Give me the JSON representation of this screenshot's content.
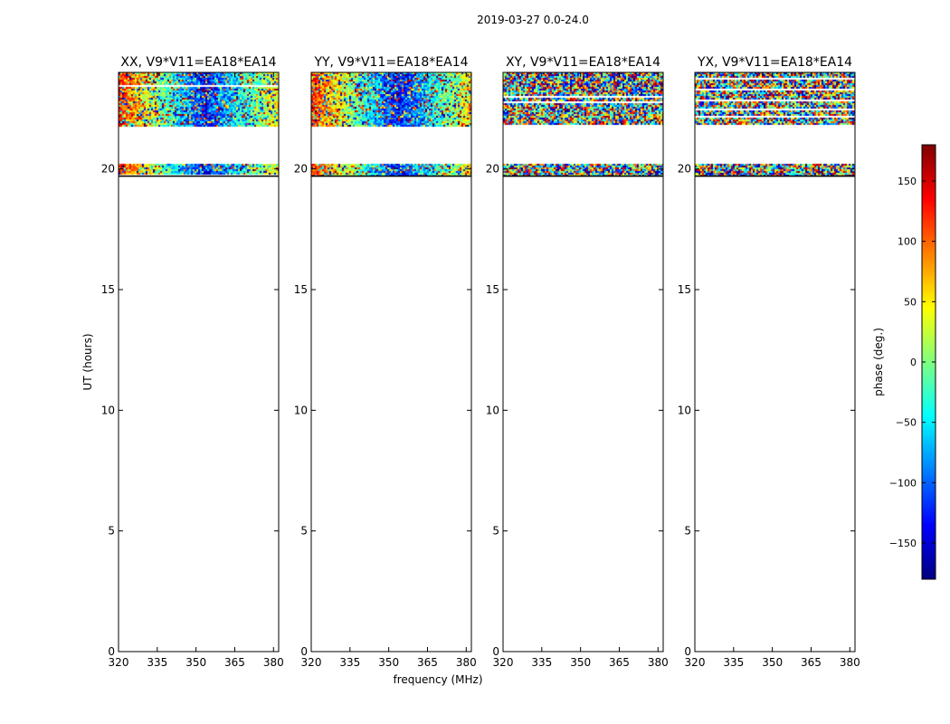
{
  "chart_data": {
    "type": "heatmap",
    "suptitle": "2019-03-27 0.0-24.0",
    "xlabel": "frequency (MHz)",
    "ylabel": "UT (hours)",
    "xlim": [
      320,
      382
    ],
    "ylim": [
      0,
      24
    ],
    "xticks": [
      "320",
      "335",
      "350",
      "365",
      "380"
    ],
    "yticks": [
      "0",
      "5",
      "10",
      "15",
      "20"
    ],
    "panels": [
      {
        "title": "XX, V9*V11=EA18*EA14",
        "kind": "parallel"
      },
      {
        "title": "YY, V9*V11=EA18*EA14",
        "kind": "parallel"
      },
      {
        "title": "XY, V9*V11=EA18*EA14",
        "kind": "cross"
      },
      {
        "title": "YX, V9*V11=EA18*EA14",
        "kind": "cross"
      }
    ],
    "data_time_ranges_hours": [
      [
        19.7,
        20.2
      ],
      [
        21.8,
        24.0
      ]
    ],
    "colorbar": {
      "label": "phase (deg.)",
      "range": [
        -180,
        180
      ],
      "ticks": [
        "150",
        "100",
        "50",
        "0",
        "−50",
        "−100",
        "−150"
      ],
      "colormap": "jet",
      "stop_colors": [
        "#00007f",
        "#0000ff",
        "#007fff",
        "#00ffff",
        "#7fff7f",
        "#ffff00",
        "#ff7f00",
        "#ff0000",
        "#7f0000"
      ]
    }
  }
}
